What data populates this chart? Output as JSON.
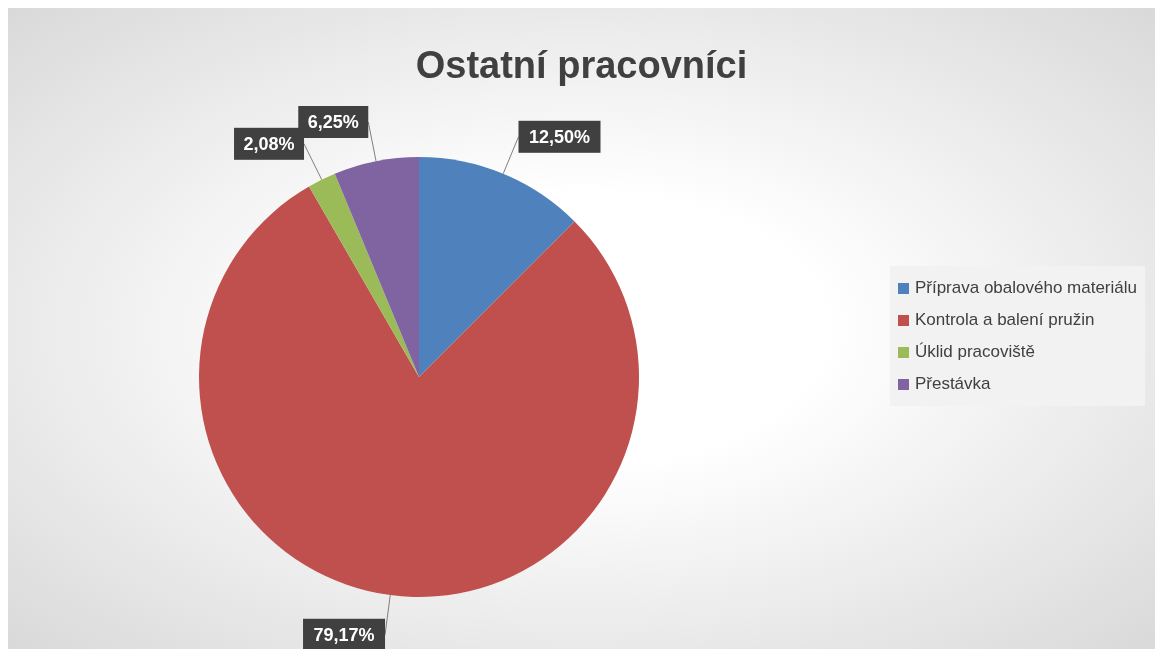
{
  "chart_data": {
    "type": "pie",
    "title": "Ostatní pracovníci",
    "categories": [
      "Příprava obalového materiálu",
      "Kontrola a balení pružin",
      "Úklid pracoviště",
      "Přestávka"
    ],
    "values": [
      12.5,
      79.17,
      2.08,
      6.25
    ],
    "colors": [
      "#4f81bd",
      "#c0504d",
      "#9bbb59",
      "#8064a2"
    ],
    "value_labels": [
      "12,50%",
      "79,17%",
      "2,08%",
      "6,25%"
    ],
    "legend": "right"
  }
}
